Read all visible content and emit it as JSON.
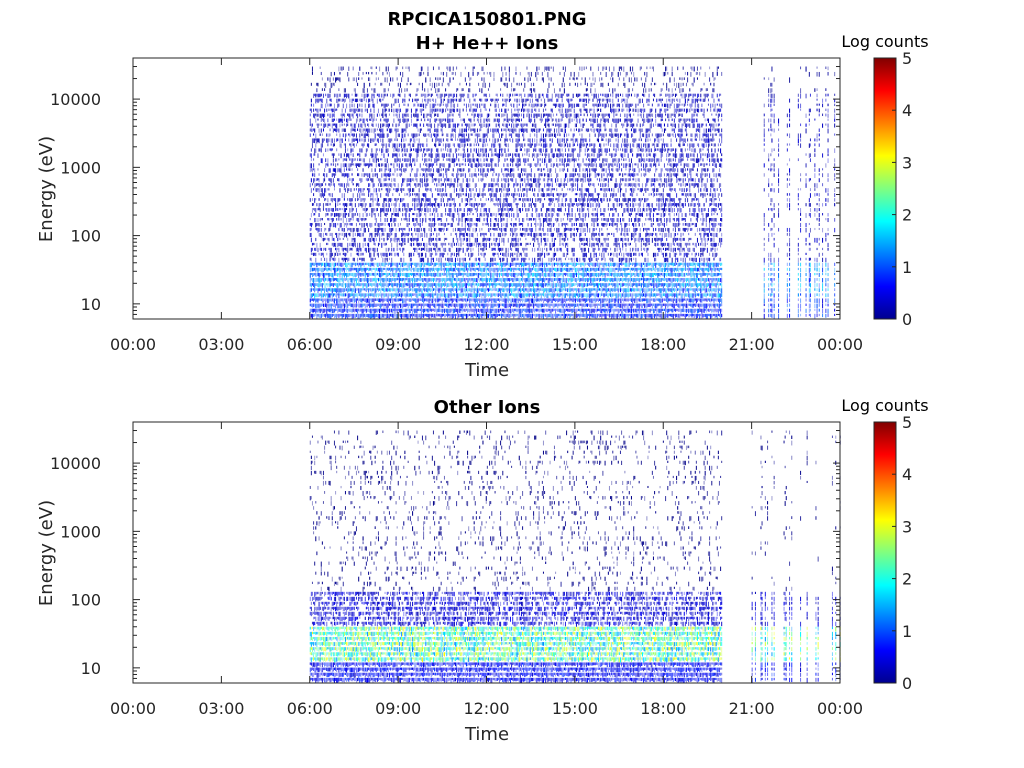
{
  "figure": {
    "title": "RPCICA150801.PNG"
  },
  "chart_data": [
    {
      "type": "heatmap",
      "title": "H+ He++ Ions",
      "xlabel": "Time",
      "ylabel": "Energy (eV)",
      "xticks": [
        "00:00",
        "03:00",
        "06:00",
        "09:00",
        "12:00",
        "15:00",
        "18:00",
        "21:00",
        "00:00"
      ],
      "xtick_hours": [
        0,
        3,
        6,
        9,
        12,
        15,
        18,
        21,
        24
      ],
      "xlim_hours": [
        0,
        24
      ],
      "yscale": "log",
      "ylim": [
        6,
        40000
      ],
      "yticks": [
        10,
        100,
        1000,
        10000
      ],
      "yticklabels": [
        "10",
        "100",
        "1000",
        "10000"
      ],
      "colorbar": {
        "label": "Log counts",
        "range": [
          0,
          5
        ],
        "ticks": [
          "0",
          "1",
          "2",
          "3",
          "4",
          "5"
        ],
        "colormap": "jet"
      },
      "data_coverage_hours": [
        [
          6.0,
          20.0
        ],
        [
          21.0,
          24.0
        ]
      ],
      "bands": [
        {
          "e_min": 6,
          "e_max": 12,
          "log_counts": 0.8
        },
        {
          "e_min": 12,
          "e_max": 40,
          "log_counts": 1.2
        },
        {
          "e_min": 40,
          "e_max": 12000,
          "log_counts": 0.3
        },
        {
          "e_min": 12000,
          "e_max": 30000,
          "log_counts": 0.1
        }
      ]
    },
    {
      "type": "heatmap",
      "title": "Other Ions",
      "xlabel": "Time",
      "ylabel": "Energy (eV)",
      "xticks": [
        "00:00",
        "03:00",
        "06:00",
        "09:00",
        "12:00",
        "15:00",
        "18:00",
        "21:00",
        "00:00"
      ],
      "xtick_hours": [
        0,
        3,
        6,
        9,
        12,
        15,
        18,
        21,
        24
      ],
      "xlim_hours": [
        0,
        24
      ],
      "yscale": "log",
      "ylim": [
        6,
        40000
      ],
      "yticks": [
        10,
        100,
        1000,
        10000
      ],
      "yticklabels": [
        "10",
        "100",
        "1000",
        "10000"
      ],
      "colorbar": {
        "label": "Log counts",
        "range": [
          0,
          5
        ],
        "ticks": [
          "0",
          "1",
          "2",
          "3",
          "4",
          "5"
        ],
        "colormap": "jet"
      },
      "data_coverage_hours": [
        [
          6.0,
          20.0
        ],
        [
          21.0,
          24.0
        ]
      ],
      "bands": [
        {
          "e_min": 6,
          "e_max": 12,
          "log_counts": 0.6
        },
        {
          "e_min": 12,
          "e_max": 40,
          "log_counts": 2.2
        },
        {
          "e_min": 40,
          "e_max": 130,
          "log_counts": 0.4
        },
        {
          "e_min": 130,
          "e_max": 30000,
          "log_counts": 0.05
        }
      ]
    }
  ]
}
